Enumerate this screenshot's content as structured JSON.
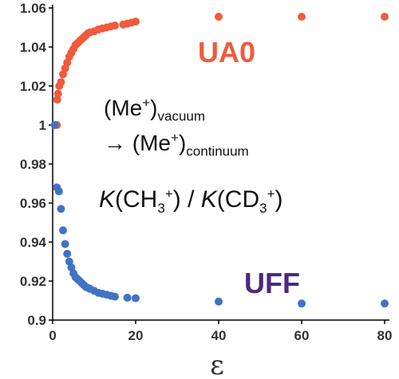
{
  "chart_data": {
    "type": "scatter",
    "xlabel": "ε",
    "ylabel": "",
    "xlim": [
      0,
      80
    ],
    "ylim": [
      0.9,
      1.06
    ],
    "x_ticks": [
      "0",
      "20",
      "40",
      "60",
      "80"
    ],
    "y_ticks": [
      "0.9",
      "0.92",
      "0.94",
      "0.96",
      "0.98",
      "1",
      "1.02",
      "1.04",
      "1.06"
    ],
    "grid": false,
    "series": [
      {
        "name": "UA0",
        "color": "#f15a3c",
        "points": [
          [
            1,
            1.0
          ],
          [
            1.1,
            1.013
          ],
          [
            1.3,
            1.016
          ],
          [
            1.6,
            1.02
          ],
          [
            2,
            1.022
          ],
          [
            2.5,
            1.026
          ],
          [
            3,
            1.029
          ],
          [
            3.5,
            1.032
          ],
          [
            4,
            1.035
          ],
          [
            4.5,
            1.037
          ],
          [
            5,
            1.039
          ],
          [
            5.5,
            1.041
          ],
          [
            6,
            1.042
          ],
          [
            6.5,
            1.043
          ],
          [
            7,
            1.044
          ],
          [
            7.5,
            1.045
          ],
          [
            8,
            1.046
          ],
          [
            8.5,
            1.047
          ],
          [
            9,
            1.0475
          ],
          [
            10,
            1.048
          ],
          [
            11,
            1.049
          ],
          [
            12,
            1.0495
          ],
          [
            13,
            1.05
          ],
          [
            14,
            1.0505
          ],
          [
            15,
            1.051
          ],
          [
            17,
            1.0515
          ],
          [
            18,
            1.052
          ],
          [
            19,
            1.0525
          ],
          [
            20,
            1.053
          ],
          [
            40,
            1.0555
          ],
          [
            60,
            1.0555
          ],
          [
            80,
            1.0555
          ]
        ]
      },
      {
        "name": "UFF",
        "color": "#4472c4",
        "points": [
          [
            0.5,
            1.0
          ],
          [
            1,
            0.968
          ],
          [
            1.5,
            0.966
          ],
          [
            2,
            0.957
          ],
          [
            2.5,
            0.946
          ],
          [
            3,
            0.939
          ],
          [
            3.5,
            0.934
          ],
          [
            4,
            0.93
          ],
          [
            4.5,
            0.927
          ],
          [
            5,
            0.924
          ],
          [
            5.5,
            0.922
          ],
          [
            6,
            0.921
          ],
          [
            6.5,
            0.92
          ],
          [
            7,
            0.919
          ],
          [
            7.5,
            0.918
          ],
          [
            8,
            0.917
          ],
          [
            8.5,
            0.9165
          ],
          [
            9,
            0.916
          ],
          [
            10,
            0.915
          ],
          [
            11,
            0.914
          ],
          [
            12,
            0.9135
          ],
          [
            13,
            0.913
          ],
          [
            14,
            0.9125
          ],
          [
            15,
            0.912
          ],
          [
            18,
            0.9115
          ],
          [
            20,
            0.9112
          ],
          [
            40,
            0.9095
          ],
          [
            60,
            0.9085
          ],
          [
            80,
            0.9085
          ]
        ]
      }
    ]
  },
  "annotations": {
    "line1": {
      "open": "(Me",
      "sup": "+",
      "close": ")",
      "sub": "vacuum"
    },
    "line2": {
      "arrow": "→",
      "open": "(Me",
      "sup": "+",
      "close": ")",
      "sub": "continuum"
    },
    "line3": {
      "k1": "K",
      "open1": "(CH",
      "sub1": "3",
      "sup1": "+",
      "close1": ")",
      "slash": "/",
      "k2": "K",
      "open2": "(CD",
      "sub2": "3",
      "sup2": "+",
      "close2": ")"
    }
  }
}
